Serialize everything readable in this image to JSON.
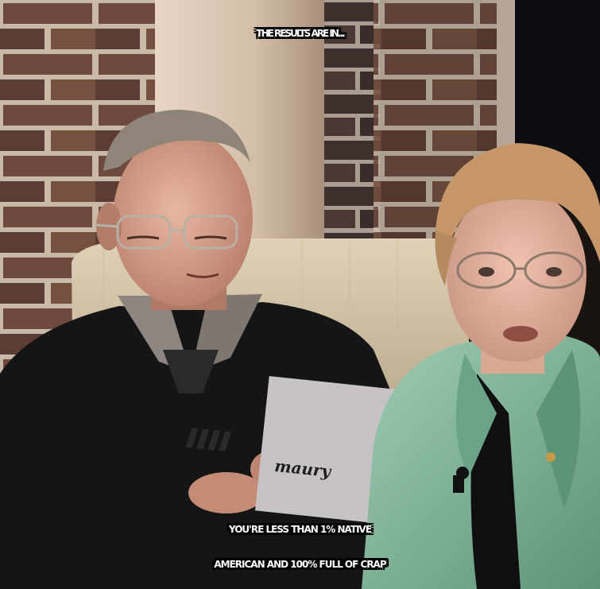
{
  "meme": {
    "top_caption": "THE RESULTS ARE IN...",
    "bottom_caption_line1": "YOU'RE LESS THAN 1% NATIVE",
    "bottom_caption_line2": "AMERICAN AND 100% FULL OF CRAP"
  },
  "card": {
    "logo_text": "maury"
  },
  "colors": {
    "caption_text": "#ffffff",
    "caption_outline": "#000000",
    "brick": "#6e4a3e",
    "mortar": "#c8b9a8",
    "jacket": "#7fb59a",
    "sweater": "#151515",
    "chair": "#cfc0a4",
    "pillar": "#d8c4b0"
  }
}
